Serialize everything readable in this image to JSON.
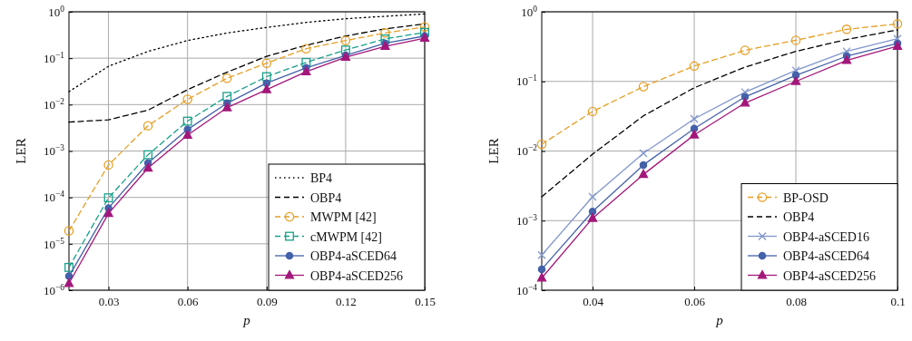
{
  "chart_data": [
    {
      "type": "line",
      "xlabel": "p",
      "ylabel": "LER",
      "log": "y",
      "grid": true,
      "legend": "bottom right",
      "xlim": [
        0.015,
        0.15
      ],
      "xticks": [
        0.03,
        0.06,
        0.09,
        0.12,
        0.15
      ],
      "ylim": [
        1e-06,
        1
      ],
      "yticks": [
        {
          "value": 1e-06,
          "label": "10$^{−6}$"
        },
        {
          "value": 1e-05,
          "label": "10$^{−5}$"
        },
        {
          "value": 0.0001,
          "label": "10$^{−4}$"
        },
        {
          "value": 0.001,
          "label": "10$^{−3}$"
        },
        {
          "value": 0.01,
          "label": "10$^{−2}$"
        },
        {
          "value": 0.1,
          "label": "10$^{−1}$"
        },
        {
          "value": 1,
          "label": "10$^{0}$"
        }
      ],
      "x": [
        0.015,
        0.03,
        0.045,
        0.06,
        0.075,
        0.09,
        0.105,
        0.12,
        0.135,
        0.15
      ],
      "series": [
        {
          "name": "BP4",
          "color": "#000000",
          "line_style": "dotted",
          "marker": "none",
          "values": [
            0.019,
            0.067,
            0.14,
            0.24,
            0.35,
            0.46,
            0.59,
            0.71,
            0.8,
            0.9
          ]
        },
        {
          "name": "OBP4",
          "color": "#000000",
          "line_style": "dashed",
          "marker": "none",
          "values": [
            0.0042,
            0.0047,
            0.0076,
            0.021,
            0.05,
            0.11,
            0.19,
            0.3,
            0.43,
            0.55
          ]
        },
        {
          "name": "MWPM [42]",
          "color": "#e69f25",
          "line_style": "dashed",
          "marker": "circle",
          "values": [
            1.9e-05,
            0.0005,
            0.0035,
            0.013,
            0.037,
            0.078,
            0.16,
            0.24,
            0.35,
            0.47
          ]
        },
        {
          "name": "cMWPM [42]",
          "color": "#16a08a",
          "line_style": "dashed",
          "marker": "square",
          "values": [
            3.1e-06,
            9.8e-05,
            0.00083,
            0.0044,
            0.015,
            0.04,
            0.081,
            0.15,
            0.26,
            0.36
          ]
        },
        {
          "name": "OBP4-aSCED64",
          "color": "#4462aa",
          "line_style": "solid",
          "marker": "circle",
          "values": [
            2e-06,
            5.9e-05,
            0.00055,
            0.0029,
            0.0107,
            0.029,
            0.062,
            0.115,
            0.21,
            0.3
          ]
        },
        {
          "name": "OBP4-aSCED256",
          "color": "#a3177b",
          "line_style": "solid",
          "marker": "triangle",
          "values": [
            1.4e-06,
            4.5e-05,
            0.00043,
            0.0022,
            0.0086,
            0.021,
            0.051,
            0.105,
            0.18,
            0.27
          ]
        }
      ]
    },
    {
      "type": "line",
      "xlabel": "p",
      "ylabel": "LER",
      "log": "y",
      "grid": true,
      "legend": "bottom right",
      "xlim": [
        0.03,
        0.1
      ],
      "xticks": [
        0.04,
        0.06,
        0.08,
        0.1
      ],
      "ylim": [
        0.0001,
        1
      ],
      "yticks": [
        {
          "value": 0.0001,
          "label": "10$^{−4}$"
        },
        {
          "value": 0.001,
          "label": "10$^{−3}$"
        },
        {
          "value": 0.01,
          "label": "10$^{−2}$"
        },
        {
          "value": 0.1,
          "label": "10$^{−1}$"
        },
        {
          "value": 1,
          "label": "10$^{0}$"
        }
      ],
      "x": [
        0.03,
        0.04,
        0.05,
        0.06,
        0.07,
        0.08,
        0.09,
        0.1
      ],
      "series": [
        {
          "name": "BP-OSD",
          "color": "#e69f25",
          "line_style": "dashed",
          "marker": "circle",
          "values": [
            0.0125,
            0.037,
            0.084,
            0.166,
            0.28,
            0.39,
            0.56,
            0.67
          ]
        },
        {
          "name": "OBP4",
          "color": "#000000",
          "line_style": "dashed",
          "marker": "none",
          "values": [
            0.0022,
            0.009,
            0.032,
            0.081,
            0.16,
            0.27,
            0.4,
            0.55
          ]
        },
        {
          "name": "OBP4-aSCED16",
          "color": "#8196cc",
          "line_style": "solid",
          "marker": "cross",
          "values": [
            0.00032,
            0.0022,
            0.0093,
            0.029,
            0.07,
            0.144,
            0.27,
            0.41
          ]
        },
        {
          "name": "OBP4-aSCED64",
          "color": "#4462aa",
          "line_style": "solid",
          "marker": "circle",
          "values": [
            0.0002,
            0.00135,
            0.0063,
            0.021,
            0.06,
            0.122,
            0.23,
            0.35
          ]
        },
        {
          "name": "OBP4-aSCED256",
          "color": "#a3177b",
          "line_style": "solid",
          "marker": "triangle",
          "values": [
            0.00015,
            0.00108,
            0.0046,
            0.017,
            0.049,
            0.1,
            0.2,
            0.32
          ]
        }
      ]
    }
  ]
}
